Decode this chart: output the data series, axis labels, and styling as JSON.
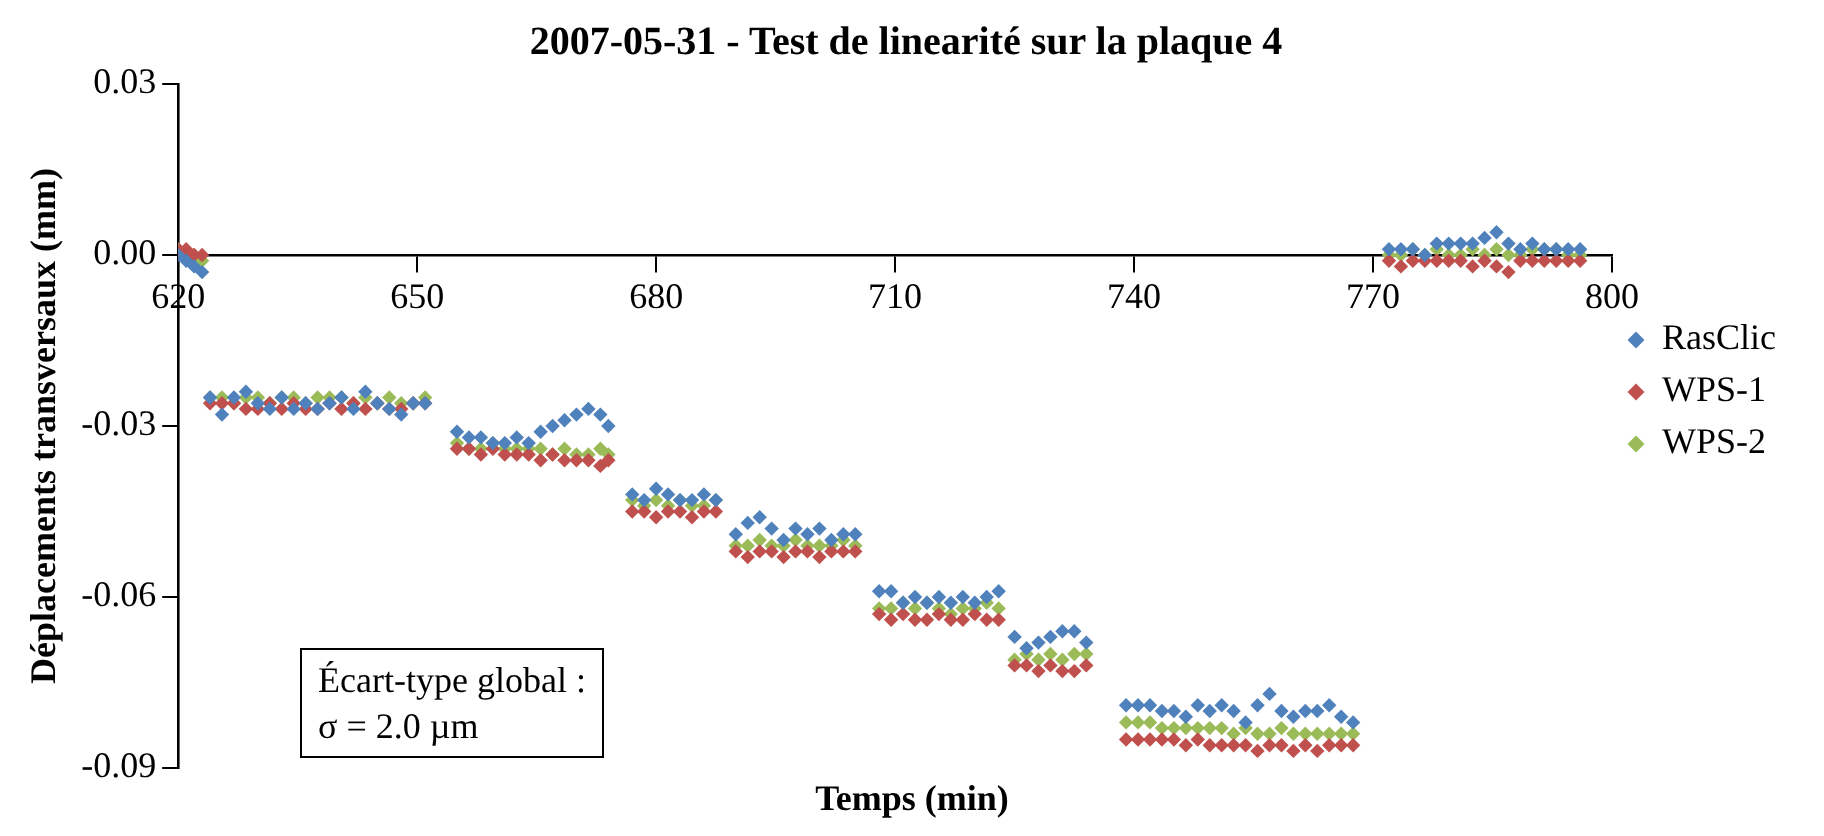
{
  "chart_data": {
    "type": "scatter",
    "title": "2007-05-31 - Test de linearité sur la plaque 4",
    "xlabel": "Temps (min)",
    "ylabel": "Déplacements transversaux (mm)",
    "x": [
      620,
      621,
      622,
      623,
      624,
      625.5,
      627,
      628.5,
      630,
      631.5,
      633,
      634.5,
      636,
      637.5,
      639,
      640.5,
      642,
      643.5,
      645,
      646.5,
      648,
      649.5,
      651,
      655,
      656.5,
      658,
      659.5,
      661,
      662.5,
      664,
      665.5,
      667,
      668.5,
      670,
      671.5,
      673,
      674,
      677,
      678.5,
      680,
      681.5,
      683,
      684.5,
      686,
      687.5,
      690,
      691.5,
      693,
      694.5,
      696,
      697.5,
      699,
      700.5,
      702,
      703.5,
      705,
      708,
      709.5,
      711,
      712.5,
      714,
      715.5,
      717,
      718.5,
      720,
      721.5,
      723,
      725,
      726.5,
      728,
      729.5,
      731,
      732.5,
      734,
      739,
      740.5,
      742,
      743.5,
      745,
      746.5,
      748,
      749.5,
      751,
      752.5,
      754,
      755.5,
      757,
      758.5,
      760,
      761.5,
      763,
      764.5,
      766,
      767.5,
      772,
      773.5,
      775,
      776.5,
      778,
      779.5,
      781,
      782.5,
      784,
      785.5,
      787,
      788.5,
      790,
      791.5,
      793,
      794.5,
      796
    ],
    "series": [
      {
        "name": "RasClic",
        "color": "#4f81bd",
        "values": [
          0,
          -0.001,
          -0.002,
          -0.003,
          -0.025,
          -0.028,
          -0.025,
          -0.024,
          -0.026,
          -0.027,
          -0.025,
          -0.027,
          -0.026,
          -0.027,
          -0.026,
          -0.025,
          -0.027,
          -0.024,
          -0.026,
          -0.027,
          -0.028,
          -0.026,
          -0.026,
          -0.031,
          -0.032,
          -0.032,
          -0.033,
          -0.033,
          -0.032,
          -0.033,
          -0.031,
          -0.03,
          -0.029,
          -0.028,
          -0.027,
          -0.028,
          -0.03,
          -0.042,
          -0.043,
          -0.041,
          -0.042,
          -0.043,
          -0.043,
          -0.042,
          -0.043,
          -0.049,
          -0.047,
          -0.046,
          -0.048,
          -0.05,
          -0.048,
          -0.049,
          -0.048,
          -0.05,
          -0.049,
          -0.049,
          -0.059,
          -0.059,
          -0.061,
          -0.06,
          -0.061,
          -0.06,
          -0.061,
          -0.06,
          -0.061,
          -0.06,
          -0.059,
          -0.067,
          -0.069,
          -0.068,
          -0.067,
          -0.066,
          -0.066,
          -0.068,
          -0.079,
          -0.079,
          -0.079,
          -0.08,
          -0.08,
          -0.081,
          -0.079,
          -0.08,
          -0.079,
          -0.08,
          -0.082,
          -0.079,
          -0.077,
          -0.08,
          -0.081,
          -0.08,
          -0.08,
          -0.079,
          -0.081,
          -0.082,
          0.001,
          0.001,
          0.001,
          0.0,
          0.002,
          0.002,
          0.002,
          0.002,
          0.003,
          0.004,
          0.002,
          0.001,
          0.002,
          0.001,
          0.001,
          0.001,
          0.001
        ]
      },
      {
        "name": "WPS-1",
        "color": "#c0504d",
        "values": [
          0.001,
          0.001,
          0,
          0,
          -0.026,
          -0.026,
          -0.026,
          -0.027,
          -0.027,
          -0.026,
          -0.027,
          -0.026,
          -0.027,
          -0.027,
          -0.026,
          -0.027,
          -0.026,
          -0.027,
          -0.026,
          -0.027,
          -0.027,
          -0.026,
          -0.026,
          -0.034,
          -0.034,
          -0.035,
          -0.034,
          -0.035,
          -0.035,
          -0.035,
          -0.036,
          -0.035,
          -0.036,
          -0.036,
          -0.036,
          -0.037,
          -0.036,
          -0.045,
          -0.045,
          -0.046,
          -0.045,
          -0.045,
          -0.046,
          -0.045,
          -0.045,
          -0.052,
          -0.053,
          -0.052,
          -0.052,
          -0.053,
          -0.052,
          -0.052,
          -0.053,
          -0.052,
          -0.052,
          -0.052,
          -0.063,
          -0.064,
          -0.063,
          -0.064,
          -0.064,
          -0.063,
          -0.064,
          -0.064,
          -0.063,
          -0.064,
          -0.064,
          -0.072,
          -0.072,
          -0.073,
          -0.072,
          -0.073,
          -0.073,
          -0.072,
          -0.085,
          -0.085,
          -0.085,
          -0.085,
          -0.085,
          -0.086,
          -0.085,
          -0.086,
          -0.086,
          -0.086,
          -0.086,
          -0.087,
          -0.086,
          -0.086,
          -0.087,
          -0.086,
          -0.087,
          -0.086,
          -0.086,
          -0.086,
          -0.001,
          -0.002,
          -0.001,
          -0.001,
          -0.001,
          -0.001,
          -0.001,
          -0.002,
          -0.001,
          -0.002,
          -0.003,
          -0.001,
          -0.001,
          -0.001,
          -0.001,
          -0.001,
          -0.001
        ]
      },
      {
        "name": "WPS-2",
        "color": "#9bbb59",
        "values": [
          0.001,
          null,
          0,
          -0.001,
          -0.025,
          -0.025,
          -0.026,
          -0.025,
          -0.025,
          -0.026,
          -0.025,
          -0.025,
          -0.026,
          -0.025,
          -0.025,
          -0.025,
          -0.026,
          -0.025,
          -0.026,
          -0.025,
          -0.026,
          -0.026,
          -0.025,
          -0.033,
          -0.034,
          -0.034,
          -0.033,
          -0.034,
          -0.034,
          -0.034,
          -0.034,
          -0.035,
          -0.034,
          -0.035,
          -0.035,
          -0.034,
          -0.035,
          -0.043,
          -0.044,
          -0.043,
          -0.044,
          -0.043,
          -0.044,
          -0.044,
          -0.043,
          -0.051,
          -0.051,
          -0.05,
          -0.051,
          -0.051,
          -0.05,
          -0.051,
          -0.051,
          -0.051,
          -0.05,
          -0.051,
          -0.062,
          -0.062,
          -0.061,
          -0.062,
          -0.061,
          -0.062,
          -0.063,
          -0.062,
          -0.062,
          -0.061,
          -0.062,
          -0.071,
          -0.07,
          -0.071,
          -0.07,
          -0.071,
          -0.07,
          -0.07,
          -0.082,
          -0.082,
          -0.082,
          -0.083,
          -0.083,
          -0.083,
          -0.083,
          -0.083,
          -0.083,
          -0.084,
          -0.083,
          -0.084,
          -0.084,
          -0.083,
          -0.084,
          -0.084,
          -0.084,
          -0.084,
          -0.084,
          -0.084,
          0.0,
          0.0,
          0.001,
          0.0,
          0.001,
          0.0,
          0.0,
          0.001,
          0.0,
          0.001,
          0.0,
          0.0,
          0.001,
          0.001,
          0.001,
          0.0,
          0.0
        ]
      }
    ],
    "xlim": [
      620,
      800
    ],
    "xticks": [
      620,
      650,
      680,
      710,
      740,
      770,
      800
    ],
    "ylim": [
      -0.09,
      0.03
    ],
    "yticks": [
      -0.09,
      -0.06,
      -0.03,
      {
        "value": 0,
        "label": "0.00"
      },
      0.03
    ],
    "grid": false,
    "legend": "right",
    "marker": "diamond",
    "annotations": [
      "Écart-type global :\nσ = 2.0 µm"
    ]
  }
}
